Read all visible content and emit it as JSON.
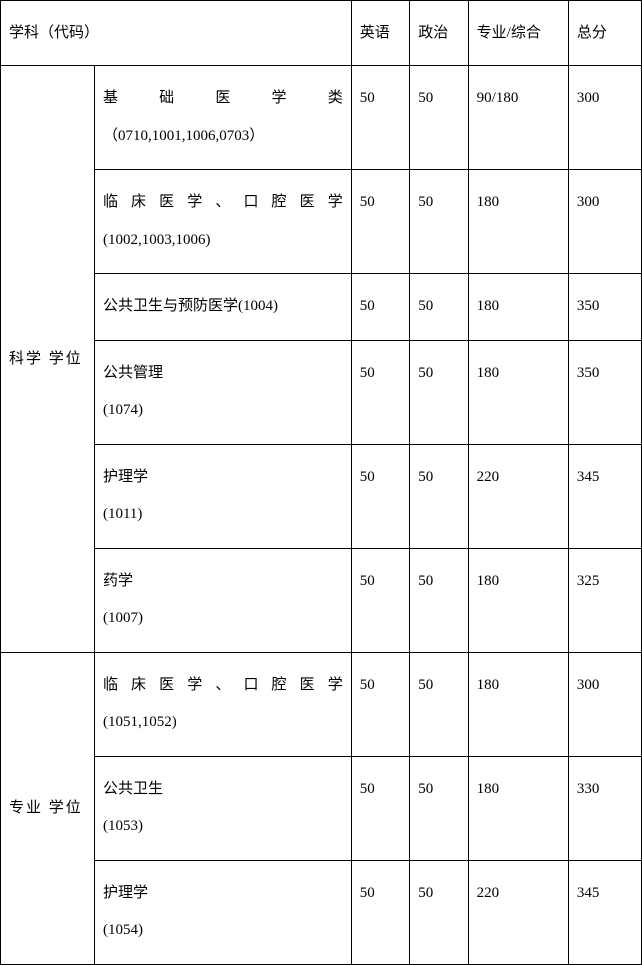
{
  "table": {
    "headers": {
      "subject_code": "学科（代码）",
      "english": "英语",
      "politics": "政治",
      "major": "专业/综合",
      "total": "总分"
    },
    "groups": [
      {
        "category": "科学 学位",
        "rows": [
          {
            "subject_line1": "基础医学类",
            "subject_line2": "（0710,1001,1006,0703）",
            "justify1": true,
            "english": "50",
            "politics": "50",
            "major": "90/180",
            "total": "300"
          },
          {
            "subject_line1": "临床医学、口腔医学",
            "subject_line2": "(1002,1003,1006)",
            "justify1": true,
            "english": "50",
            "politics": "50",
            "major": "180",
            "total": "300"
          },
          {
            "subject_line1": "公共卫生与预防医学(1004)",
            "subject_line2": "",
            "justify1": false,
            "english": "50",
            "politics": "50",
            "major": "180",
            "total": "350"
          },
          {
            "subject_line1": "公共管理",
            "subject_line2": "(1074)",
            "justify1": false,
            "english": "50",
            "politics": "50",
            "major": "180",
            "total": "350"
          },
          {
            "subject_line1": "护理学",
            "subject_line2": "(1011)",
            "justify1": false,
            "english": "50",
            "politics": "50",
            "major": "220",
            "total": "345"
          },
          {
            "subject_line1": "药学",
            "subject_line2": "(1007)",
            "justify1": false,
            "english": "50",
            "politics": "50",
            "major": "180",
            "total": "325"
          }
        ]
      },
      {
        "category": "专业 学位",
        "rows": [
          {
            "subject_line1": "临床医学、口腔医学",
            "subject_line2": "(1051,1052)",
            "justify1": true,
            "english": "50",
            "politics": "50",
            "major": "180",
            "total": "300"
          },
          {
            "subject_line1": "公共卫生",
            "subject_line2": "(1053)",
            "justify1": false,
            "english": "50",
            "politics": "50",
            "major": "180",
            "total": "330"
          },
          {
            "subject_line1": "护理学",
            "subject_line2": "(1054)",
            "justify1": false,
            "english": "50",
            "politics": "50",
            "major": "220",
            "total": "345"
          }
        ]
      }
    ]
  },
  "styles": {
    "border_color": "#000000",
    "background_color": "#ffffff",
    "font_size": 15,
    "line_height": 2.4
  }
}
